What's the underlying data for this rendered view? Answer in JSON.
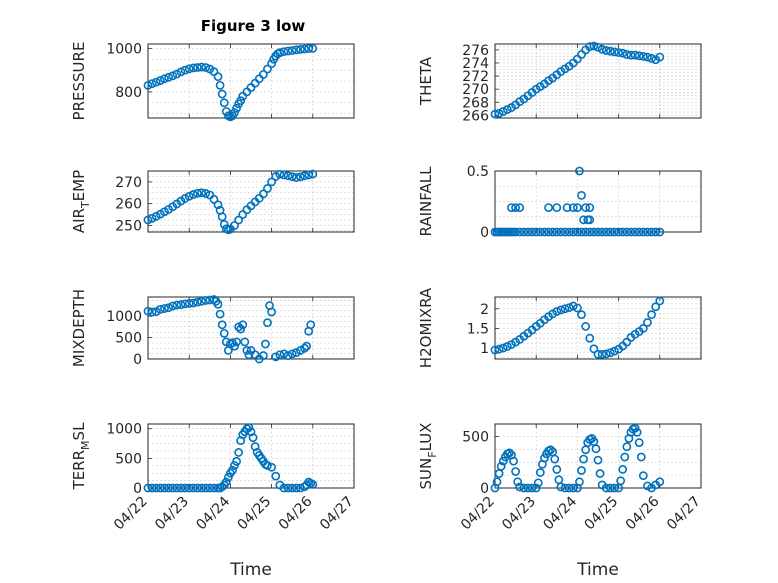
{
  "title": "Figure 3 low",
  "marker_color": "#0072bd",
  "chart_data": [
    {
      "type": "scatter",
      "ylabel": "PRESSURE",
      "xticks": [],
      "yticks": [
        800,
        1000
      ],
      "ylim": [
        680,
        1020
      ],
      "grid": true,
      "x": [
        0,
        0.1,
        0.2,
        0.3,
        0.4,
        0.5,
        0.6,
        0.7,
        0.8,
        0.9,
        1.0,
        1.1,
        1.2,
        1.3,
        1.4,
        1.5,
        1.6,
        1.7,
        1.75,
        1.8,
        1.85,
        1.9,
        1.95,
        2.0,
        2.05,
        2.1,
        2.15,
        2.2,
        2.25,
        2.3,
        2.4,
        2.5,
        2.6,
        2.7,
        2.8,
        2.9,
        3.0,
        3.05,
        3.1,
        3.15,
        3.2,
        3.3,
        3.4,
        3.5,
        3.6,
        3.7,
        3.8,
        3.9,
        4.0
      ],
      "y": [
        830,
        838,
        845,
        852,
        860,
        867,
        874,
        882,
        892,
        900,
        906,
        910,
        912,
        914,
        912,
        905,
        893,
        870,
        830,
        790,
        750,
        710,
        690,
        685,
        690,
        705,
        725,
        745,
        760,
        780,
        800,
        820,
        840,
        860,
        880,
        905,
        930,
        950,
        965,
        975,
        980,
        985,
        988,
        990,
        993,
        995,
        997,
        999,
        1000
      ]
    },
    {
      "type": "scatter",
      "ylabel": "THETA",
      "xticks": [],
      "yticks": [
        266,
        268,
        270,
        272,
        274,
        276
      ],
      "ylim": [
        265.6,
        276.9
      ],
      "grid": true,
      "x": [
        0,
        0.1,
        0.2,
        0.3,
        0.4,
        0.5,
        0.6,
        0.7,
        0.8,
        0.9,
        1.0,
        1.1,
        1.2,
        1.3,
        1.4,
        1.5,
        1.6,
        1.7,
        1.8,
        1.9,
        2.0,
        2.1,
        2.2,
        2.3,
        2.4,
        2.5,
        2.6,
        2.7,
        2.8,
        2.9,
        3.0,
        3.1,
        3.2,
        3.3,
        3.4,
        3.5,
        3.6,
        3.7,
        3.8,
        3.9,
        4.0
      ],
      "y": [
        266.2,
        266.3,
        266.6,
        266.9,
        267.2,
        267.6,
        268.1,
        268.5,
        269.0,
        269.5,
        270.0,
        270.4,
        270.8,
        271.3,
        271.7,
        272.2,
        272.7,
        273.1,
        273.5,
        274.0,
        274.6,
        275.3,
        276.0,
        276.5,
        276.6,
        276.4,
        276.1,
        275.9,
        275.8,
        275.7,
        275.6,
        275.5,
        275.3,
        275.2,
        275.2,
        275.1,
        275.0,
        274.9,
        274.7,
        274.5,
        274.9
      ]
    },
    {
      "type": "scatter",
      "ylabel": "AIR_TEMP",
      "xticks": [],
      "yticks": [
        250,
        260,
        270
      ],
      "ylim": [
        247,
        275
      ],
      "grid": true,
      "x": [
        0,
        0.1,
        0.2,
        0.3,
        0.4,
        0.5,
        0.6,
        0.7,
        0.8,
        0.9,
        1.0,
        1.1,
        1.2,
        1.3,
        1.4,
        1.5,
        1.6,
        1.7,
        1.75,
        1.8,
        1.85,
        1.9,
        1.95,
        2.0,
        2.1,
        2.2,
        2.3,
        2.4,
        2.5,
        2.6,
        2.7,
        2.8,
        2.9,
        3.0,
        3.1,
        3.2,
        3.3,
        3.4,
        3.5,
        3.6,
        3.7,
        3.8,
        3.9,
        4.0
      ],
      "y": [
        252.5,
        253.3,
        254.2,
        255.2,
        256.3,
        257.4,
        258.6,
        259.9,
        261.2,
        262.4,
        263.4,
        264.2,
        264.8,
        265.0,
        264.7,
        264.0,
        262.0,
        259.5,
        257.0,
        254.0,
        250.5,
        248.5,
        248.0,
        248.3,
        250.0,
        252.5,
        255.0,
        257.2,
        259.0,
        260.8,
        262.5,
        264.5,
        267.0,
        270.0,
        272.5,
        273.5,
        273.2,
        272.8,
        272.4,
        272.0,
        272.3,
        272.8,
        273.2,
        273.6
      ]
    },
    {
      "type": "scatter",
      "ylabel": "RAINFALL",
      "xticks": [],
      "yticks": [
        0,
        0.5
      ],
      "ylim": [
        0,
        0.5
      ],
      "grid": true,
      "x": [
        0,
        0.05,
        0.1,
        0.15,
        0.2,
        0.25,
        0.3,
        0.35,
        0.4,
        0.45,
        0.5,
        0.6,
        0.7,
        0.8,
        0.9,
        1.0,
        1.1,
        1.2,
        1.3,
        1.4,
        1.5,
        1.6,
        1.7,
        1.8,
        1.9,
        2.0,
        2.1,
        2.2,
        2.3,
        2.4,
        2.5,
        2.6,
        2.7,
        2.8,
        2.9,
        3.0,
        3.1,
        3.2,
        3.3,
        3.4,
        3.5,
        3.6,
        3.7,
        3.8,
        3.9,
        4.0,
        0.4,
        0.5,
        0.6,
        1.3,
        1.5,
        1.75,
        1.9,
        2.0,
        2.1,
        2.2,
        2.3,
        2.05,
        2.15,
        2.25,
        2.3
      ],
      "y": [
        0,
        0,
        0,
        0,
        0,
        0,
        0,
        0,
        0,
        0,
        0,
        0,
        0,
        0,
        0,
        0,
        0,
        0,
        0,
        0,
        0,
        0,
        0,
        0,
        0,
        0,
        0,
        0,
        0,
        0,
        0,
        0,
        0,
        0,
        0,
        0,
        0,
        0,
        0,
        0,
        0,
        0,
        0,
        0,
        0,
        0,
        0.2,
        0.2,
        0.2,
        0.2,
        0.2,
        0.2,
        0.2,
        0.2,
        0.3,
        0.2,
        0.2,
        0.5,
        0.1,
        0.1,
        0.1
      ]
    },
    {
      "type": "scatter",
      "ylabel": "MIXDEPTH",
      "xticks": [],
      "yticks": [
        0,
        500,
        1000
      ],
      "ylim": [
        0,
        1450
      ],
      "grid": true,
      "x": [
        0,
        0.1,
        0.2,
        0.3,
        0.4,
        0.5,
        0.6,
        0.7,
        0.8,
        0.9,
        1.0,
        1.1,
        1.2,
        1.3,
        1.4,
        1.5,
        1.6,
        1.65,
        1.7,
        1.75,
        1.8,
        1.85,
        1.9,
        1.95,
        2.0,
        2.05,
        2.1,
        2.15,
        2.2,
        2.25,
        2.3,
        2.35,
        2.4,
        2.45,
        2.5,
        2.6,
        2.7,
        2.8,
        2.85,
        2.9,
        2.95,
        3.0,
        3.1,
        3.2,
        3.3,
        3.4,
        3.5,
        3.6,
        3.7,
        3.8,
        3.85,
        3.9,
        3.95
      ],
      "y": [
        1120,
        1100,
        1110,
        1160,
        1180,
        1200,
        1240,
        1260,
        1270,
        1290,
        1300,
        1310,
        1330,
        1350,
        1370,
        1380,
        1390,
        1350,
        1280,
        1050,
        800,
        600,
        400,
        200,
        350,
        380,
        300,
        400,
        750,
        700,
        800,
        400,
        200,
        100,
        200,
        100,
        0,
        80,
        350,
        850,
        1250,
        1100,
        50,
        100,
        120,
        80,
        120,
        150,
        200,
        250,
        300,
        650,
        800
      ]
    },
    {
      "type": "scatter",
      "ylabel": "H2OMIXRA",
      "xticks": [],
      "yticks": [
        1,
        1.5,
        2
      ],
      "ylim": [
        0.72,
        2.3
      ],
      "grid": true,
      "x": [
        0,
        0.1,
        0.2,
        0.3,
        0.4,
        0.5,
        0.6,
        0.7,
        0.8,
        0.9,
        1.0,
        1.1,
        1.2,
        1.3,
        1.4,
        1.5,
        1.6,
        1.7,
        1.8,
        1.9,
        2.0,
        2.1,
        2.2,
        2.3,
        2.4,
        2.5,
        2.6,
        2.7,
        2.8,
        2.9,
        3.0,
        3.1,
        3.2,
        3.3,
        3.4,
        3.5,
        3.6,
        3.7,
        3.8,
        3.9,
        4.0
      ],
      "y": [
        0.95,
        0.97,
        1.0,
        1.04,
        1.09,
        1.15,
        1.22,
        1.3,
        1.38,
        1.46,
        1.55,
        1.63,
        1.72,
        1.8,
        1.87,
        1.93,
        1.97,
        2.0,
        2.03,
        2.07,
        2.02,
        1.85,
        1.55,
        1.25,
        0.98,
        0.84,
        0.84,
        0.85,
        0.88,
        0.92,
        0.97,
        1.05,
        1.15,
        1.27,
        1.35,
        1.42,
        1.5,
        1.65,
        1.85,
        2.05,
        2.2
      ]
    },
    {
      "type": "scatter",
      "ylabel": "TERR_MSL",
      "xticks": [
        "04/22",
        "04/23",
        "04/24",
        "04/25",
        "04/26",
        "04/27"
      ],
      "xlabel": "Time",
      "yticks": [
        0,
        500,
        1000
      ],
      "ylim": [
        0,
        1080
      ],
      "grid": true,
      "x": [
        0,
        0.1,
        0.2,
        0.3,
        0.4,
        0.5,
        0.6,
        0.7,
        0.8,
        0.9,
        1.0,
        1.1,
        1.2,
        1.3,
        1.4,
        1.5,
        1.6,
        1.7,
        1.75,
        1.8,
        1.85,
        1.9,
        1.95,
        2.0,
        2.05,
        2.1,
        2.15,
        2.2,
        2.25,
        2.3,
        2.35,
        2.4,
        2.45,
        2.5,
        2.55,
        2.6,
        2.65,
        2.7,
        2.75,
        2.8,
        2.85,
        2.9,
        3.0,
        3.1,
        3.2,
        3.3,
        3.4,
        3.5,
        3.6,
        3.7,
        3.8,
        3.85,
        3.9,
        3.95,
        4.0
      ],
      "y": [
        0,
        0,
        0,
        0,
        0,
        0,
        0,
        0,
        0,
        0,
        0,
        0,
        0,
        0,
        0,
        0,
        0,
        0,
        0,
        20,
        50,
        100,
        180,
        250,
        300,
        380,
        450,
        600,
        800,
        900,
        950,
        1000,
        1020,
        950,
        850,
        700,
        600,
        550,
        500,
        450,
        400,
        380,
        350,
        200,
        50,
        0,
        0,
        0,
        0,
        0,
        20,
        50,
        100,
        80,
        60
      ]
    },
    {
      "type": "scatter",
      "ylabel": "SUN_FLUX",
      "xticks": [
        "04/22",
        "04/23",
        "04/24",
        "04/25",
        "04/26",
        "04/27"
      ],
      "xlabel": "Time",
      "yticks": [
        0,
        500
      ],
      "ylim": [
        0,
        620
      ],
      "grid": true,
      "x": [
        0,
        0.05,
        0.1,
        0.15,
        0.2,
        0.25,
        0.3,
        0.35,
        0.4,
        0.45,
        0.5,
        0.55,
        0.6,
        0.7,
        0.8,
        0.9,
        1.0,
        1.05,
        1.1,
        1.15,
        1.2,
        1.25,
        1.3,
        1.35,
        1.4,
        1.45,
        1.5,
        1.55,
        1.6,
        1.7,
        1.8,
        1.9,
        2.0,
        2.05,
        2.1,
        2.15,
        2.2,
        2.25,
        2.3,
        2.35,
        2.4,
        2.45,
        2.5,
        2.55,
        2.6,
        2.7,
        2.8,
        2.9,
        3.0,
        3.05,
        3.1,
        3.15,
        3.2,
        3.25,
        3.3,
        3.35,
        3.4,
        3.45,
        3.5,
        3.55,
        3.6,
        3.7,
        3.8,
        3.9,
        4.0
      ],
      "y": [
        0,
        60,
        140,
        210,
        260,
        300,
        330,
        340,
        320,
        260,
        160,
        60,
        10,
        0,
        0,
        0,
        0,
        50,
        150,
        230,
        290,
        330,
        360,
        370,
        350,
        280,
        180,
        80,
        10,
        0,
        0,
        0,
        0,
        60,
        170,
        280,
        370,
        440,
        470,
        480,
        450,
        380,
        270,
        140,
        30,
        0,
        0,
        0,
        0,
        70,
        180,
        300,
        400,
        480,
        540,
        570,
        580,
        540,
        440,
        300,
        120,
        20,
        0,
        30,
        60
      ]
    }
  ]
}
